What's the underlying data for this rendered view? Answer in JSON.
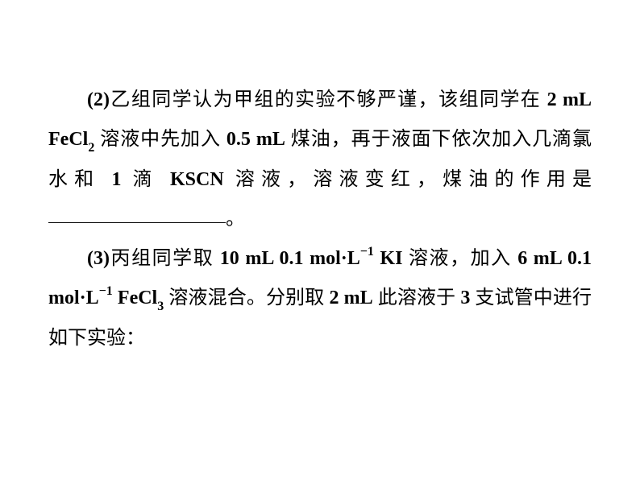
{
  "paragraph2": {
    "label": "(2)",
    "text_part1": "乙组同学认为甲组的实验不够严谨，该组同学在 ",
    "value1": "2 mL FeCl",
    "sub1": "2",
    "text_part2": " 溶液中先加入 ",
    "value2": "0.5 mL",
    "text_part3": " 煤油，再于液面下依次加入几滴氯水和 ",
    "value3": "1",
    "text_part4": " 滴 ",
    "value4": "KSCN",
    "text_part5": " 溶液，溶液变红，煤油的作用是",
    "text_part6": "。"
  },
  "paragraph3": {
    "label": "(3)",
    "text_part1": "丙组同学取 ",
    "value1": "10 mL 0.1 mol·L",
    "sup1": "−1",
    "value2": " KI",
    "text_part2": " 溶液，加入 ",
    "value3": "6 mL 0.1 mol·L",
    "sup2": "−1",
    "value4": " FeCl",
    "sub1": "3",
    "text_part3": " 溶液混合。分别取 ",
    "value5": "2 mL",
    "text_part4": " 此溶液于 ",
    "value6": "3",
    "text_part5": " 支试管中进行如下实验："
  }
}
